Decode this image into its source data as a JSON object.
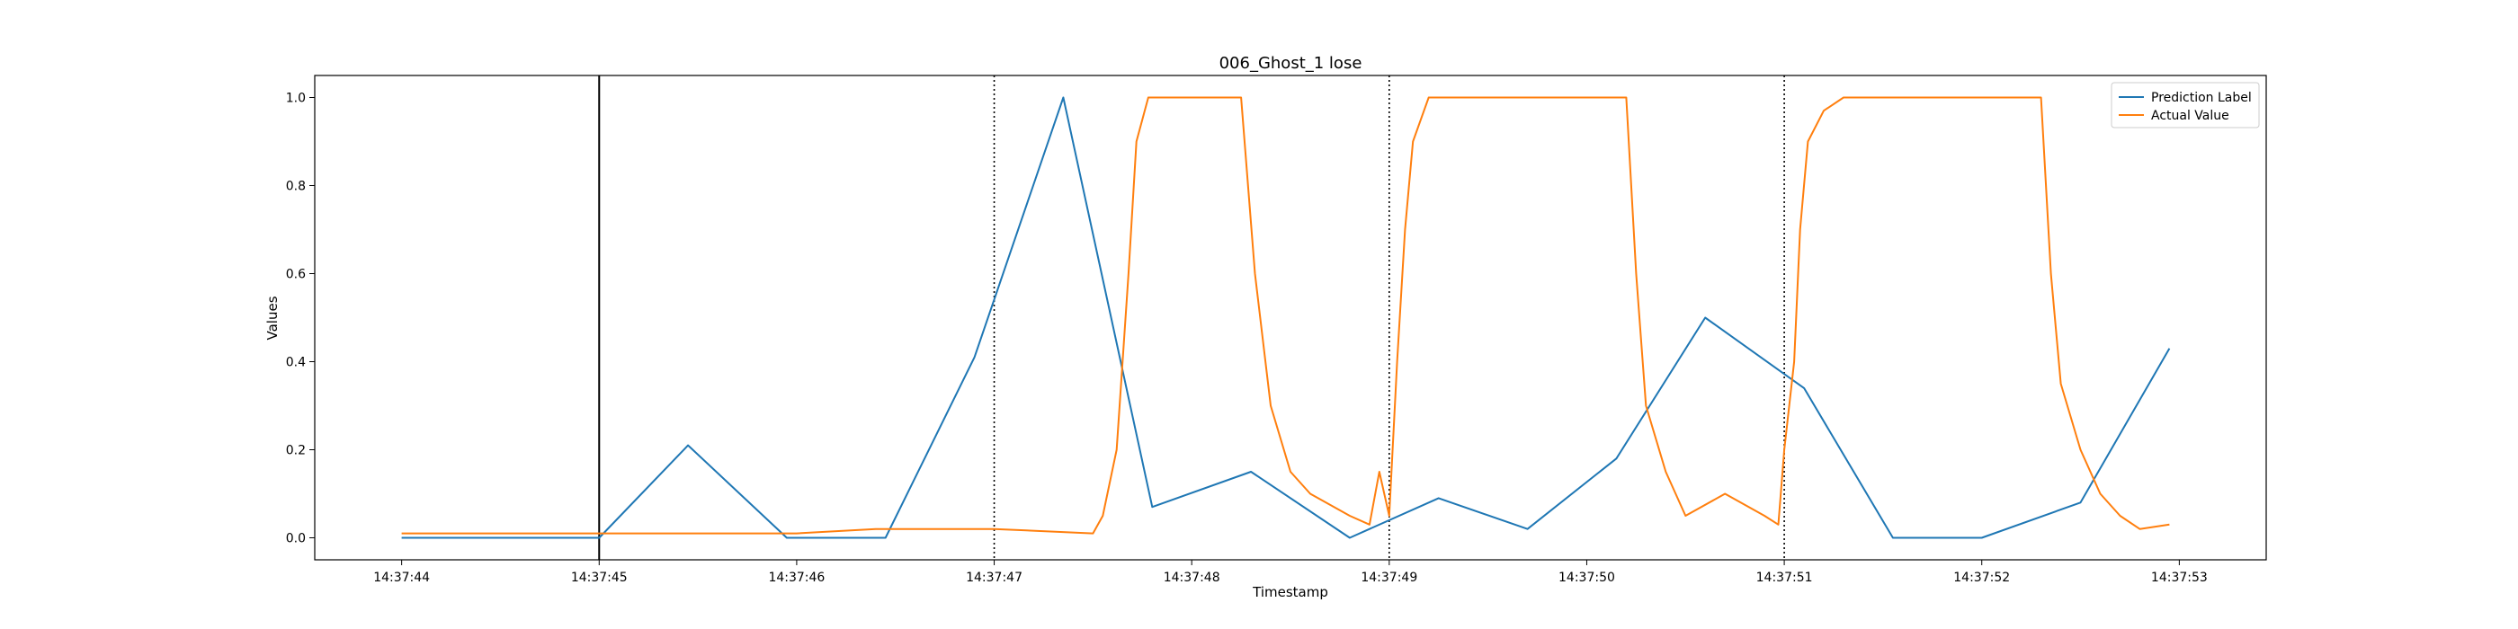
{
  "chart_data": {
    "type": "line",
    "title": "006_Ghost_1 lose",
    "xlabel": "Timestamp",
    "ylabel": "Values",
    "x_range": [
      "14:37:43.56",
      "14:37:53.44"
    ],
    "ylim": [
      -0.05,
      1.05
    ],
    "x_ticks": [
      "14:37:44",
      "14:37:45",
      "14:37:46",
      "14:37:47",
      "14:37:48",
      "14:37:49",
      "14:37:50",
      "14:37:51",
      "14:37:52",
      "14:37:53"
    ],
    "y_ticks": [
      0.0,
      0.2,
      0.4,
      0.6,
      0.8,
      1.0
    ],
    "y_tick_labels": [
      "0.0",
      "0.2",
      "0.4",
      "0.6",
      "0.8",
      "1.0"
    ],
    "grid": false,
    "legend_position": "top-right",
    "vertical_lines": [
      {
        "x": "14:37:45",
        "style": "solid",
        "color": "#000000"
      },
      {
        "x": "14:37:47",
        "style": "dotted",
        "color": "#000000"
      },
      {
        "x": "14:37:49",
        "style": "dotted",
        "color": "#000000"
      },
      {
        "x": "14:37:51",
        "style": "dotted",
        "color": "#000000"
      }
    ],
    "series": [
      {
        "name": "Prediction Label",
        "color": "#1f77b4",
        "x": [
          "14:37:44.00",
          "14:37:45.00",
          "14:37:45.45",
          "14:37:45.95",
          "14:37:46.45",
          "14:37:46.90",
          "14:37:47.35",
          "14:37:47.80",
          "14:37:48.30",
          "14:37:48.80",
          "14:37:49.25",
          "14:37:49.70",
          "14:37:50.15",
          "14:37:50.60",
          "14:37:51.10",
          "14:37:51.55",
          "14:37:52.00",
          "14:37:52.50",
          "14:37:52.95"
        ],
        "y": [
          0.0,
          0.0,
          0.21,
          0.0,
          0.0,
          0.41,
          1.0,
          0.07,
          0.15,
          0.0,
          0.09,
          0.02,
          0.18,
          0.5,
          0.34,
          0.0,
          0.0,
          0.08,
          0.43
        ]
      },
      {
        "name": "Actual Value",
        "color": "#ff7f0e",
        "x": [
          "14:37:44.00",
          "14:37:45.00",
          "14:37:46.00",
          "14:37:46.40",
          "14:37:46.70",
          "14:37:47.00",
          "14:37:47.50",
          "14:37:47.55",
          "14:37:47.62",
          "14:37:47.68",
          "14:37:47.72",
          "14:37:47.78",
          "14:37:48.00",
          "14:37:48.25",
          "14:37:48.32",
          "14:37:48.40",
          "14:37:48.50",
          "14:37:48.60",
          "14:37:48.80",
          "14:37:48.90",
          "14:37:48.95",
          "14:37:49.00",
          "14:37:49.04",
          "14:37:49.08",
          "14:37:49.12",
          "14:37:49.20",
          "14:37:49.30",
          "14:37:50.00",
          "14:37:50.20",
          "14:37:50.25",
          "14:37:50.30",
          "14:37:50.40",
          "14:37:50.50",
          "14:37:50.70",
          "14:37:50.90",
          "14:37:50.97",
          "14:37:51.00",
          "14:37:51.05",
          "14:37:51.08",
          "14:37:51.12",
          "14:37:51.20",
          "14:37:51.30",
          "14:37:52.00",
          "14:37:52.30",
          "14:37:52.35",
          "14:37:52.40",
          "14:37:52.50",
          "14:37:52.60",
          "14:37:52.70",
          "14:37:52.80",
          "14:37:52.95"
        ],
        "y": [
          0.01,
          0.01,
          0.01,
          0.02,
          0.02,
          0.02,
          0.01,
          0.05,
          0.2,
          0.6,
          0.9,
          1.0,
          1.0,
          1.0,
          0.6,
          0.3,
          0.15,
          0.1,
          0.05,
          0.03,
          0.15,
          0.05,
          0.4,
          0.7,
          0.9,
          1.0,
          1.0,
          1.0,
          1.0,
          0.6,
          0.3,
          0.15,
          0.05,
          0.1,
          0.05,
          0.03,
          0.2,
          0.4,
          0.7,
          0.9,
          0.97,
          1.0,
          1.0,
          1.0,
          0.6,
          0.35,
          0.2,
          0.1,
          0.05,
          0.02,
          0.03
        ]
      }
    ]
  }
}
